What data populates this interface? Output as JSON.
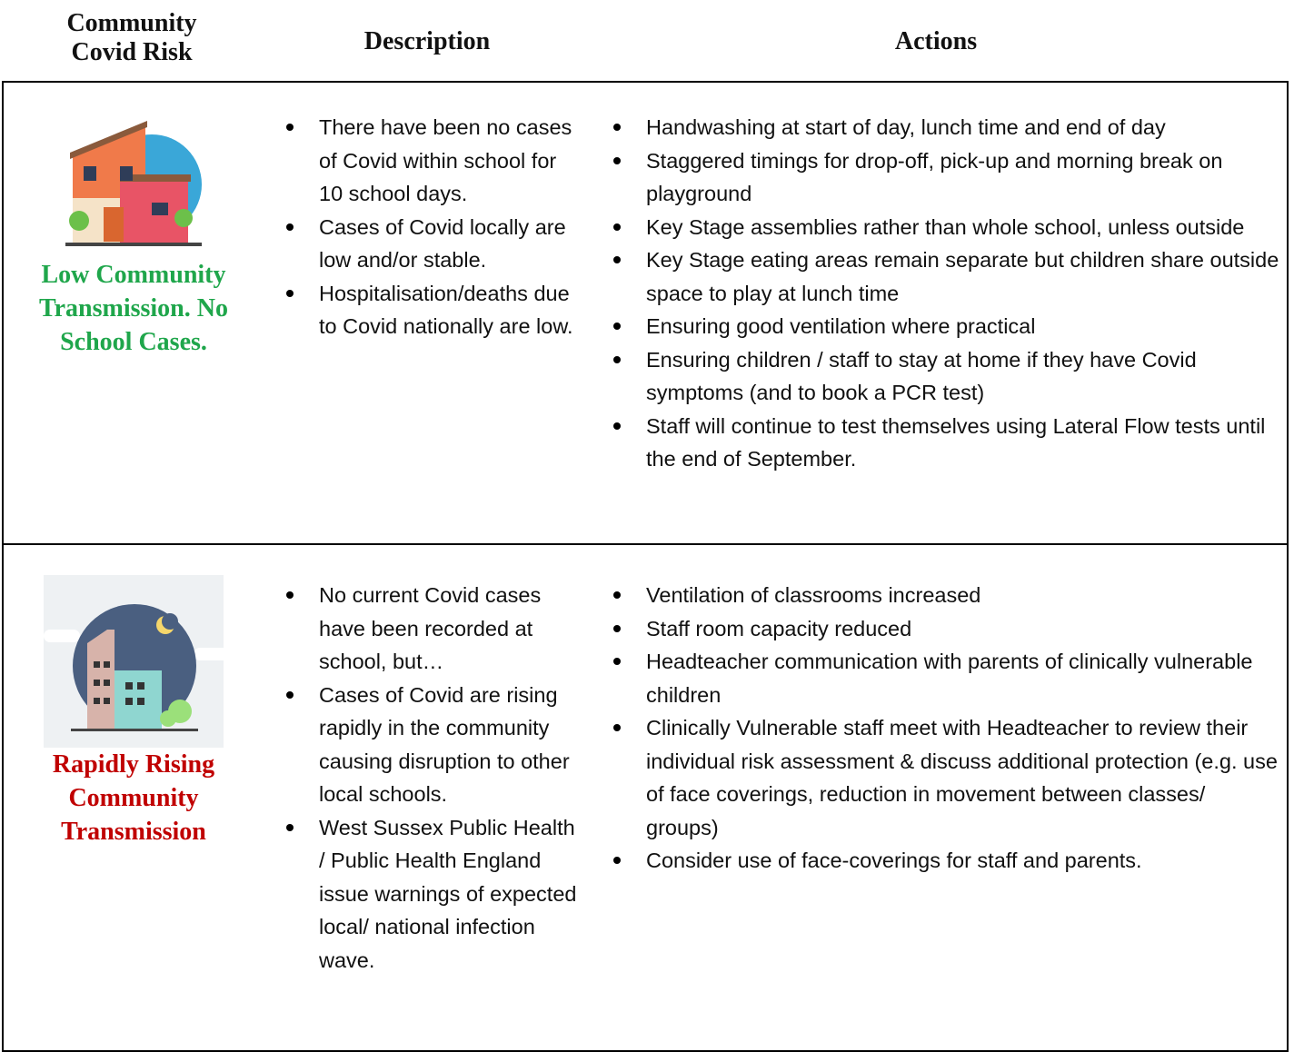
{
  "header": {
    "columns": [
      "Community Covid Risk",
      "Description",
      "Actions"
    ]
  },
  "table": {
    "rows": [
      {
        "risk": "Low Community Transmission. No School Cases.",
        "description": [
          "There have been no cases of Covid within school for 10 school days.",
          "Cases of Covid locally are low and/or stable.",
          "Hospitalisation/deaths due to Covid nationally are low."
        ],
        "actions": [
          "Handwashing at start of day, lunch time and end of day",
          "Staggered timings for drop-off, pick-up and morning break on playground",
          "Key Stage assemblies rather than whole school, unless outside",
          "Key Stage eating areas remain separate but children share outside space to play at lunch time",
          "Ensuring good ventilation where practical",
          "Ensuring children / staff to stay at home if they have Covid symptoms (and to book a PCR test)",
          "Staff will continue to test themselves using Lateral Flow tests until the end of September."
        ]
      },
      {
        "risk": "Rapidly Rising Community Transmission",
        "description": [
          "No current Covid cases have been recorded at school, but…",
          "Cases of Covid are rising rapidly in the community causing disruption to other local schools.",
          "West Sussex Public Health / Public Health England issue warnings of expected local/ national infection wave."
        ],
        "actions": [
          "Ventilation of classrooms increased",
          "Staff room capacity reduced",
          "Headteacher communication with parents of clinically vulnerable children",
          "Clinically Vulnerable staff meet with Headteacher to review their individual risk assessment & discuss additional protection (e.g. use of face coverings, reduction in movement between classes/ groups)",
          "Consider use of face-coverings for staff and parents."
        ]
      }
    ]
  }
}
